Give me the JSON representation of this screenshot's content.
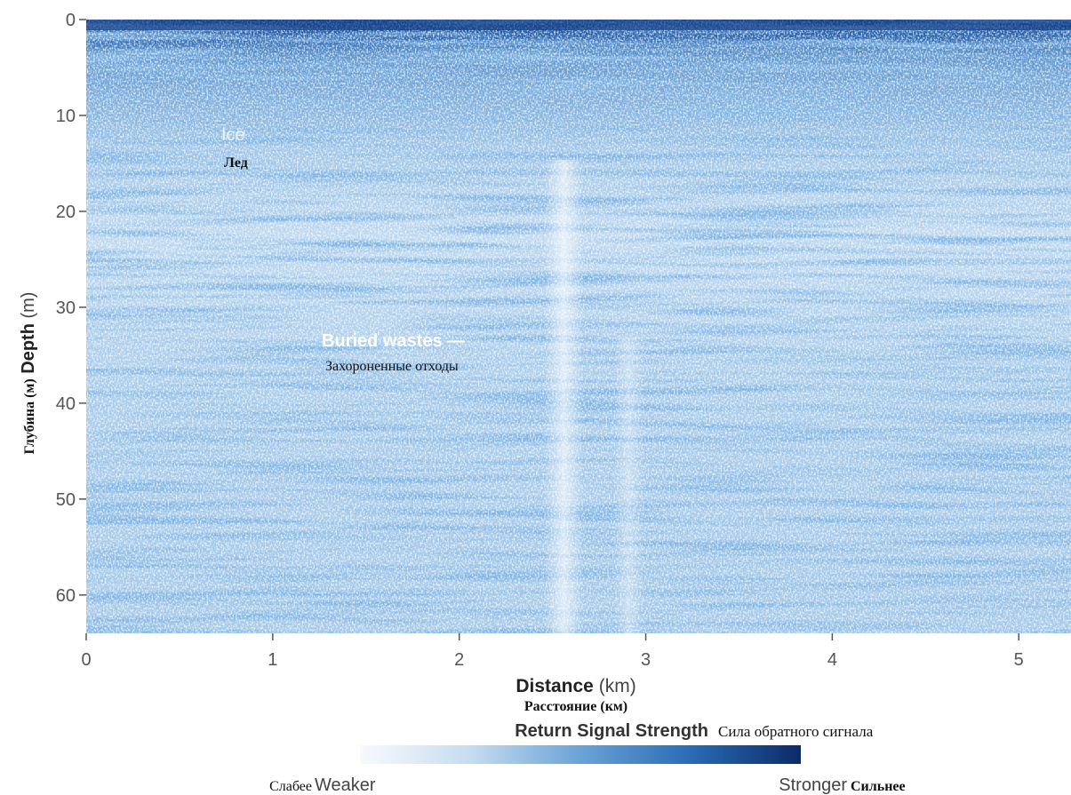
{
  "chart_data": {
    "type": "heatmap",
    "x_label": "Distance",
    "x_unit": "(km)",
    "x_label_ru": "Расстояние (км)",
    "y_label": "Depth",
    "y_unit": "(m)",
    "y_label_ru": "Глубина (м)",
    "xlim": [
      0,
      5.28
    ],
    "xticks": [
      0,
      1,
      2,
      3,
      4,
      5
    ],
    "ylim": [
      0,
      64
    ],
    "y_inverted": true,
    "yticks": [
      0,
      10,
      20,
      30,
      40,
      50,
      60
    ],
    "annotations": [
      {
        "text": "Ice",
        "text_ru": "Лед"
      },
      {
        "text": "Buried wastes —",
        "text_ru": "Захороненные отходы"
      }
    ],
    "colorbar": {
      "title": "Return Signal Strength",
      "title_ru": "Сила обратного сигнала",
      "low": "Weaker",
      "low_ru": "Слабее",
      "high": "Stronger",
      "high_ru": "Сильнее",
      "colors": [
        "#f7fafd",
        "#c6dcf0",
        "#6aa3d6",
        "#2a6bb5",
        "#0b2b66"
      ]
    }
  }
}
